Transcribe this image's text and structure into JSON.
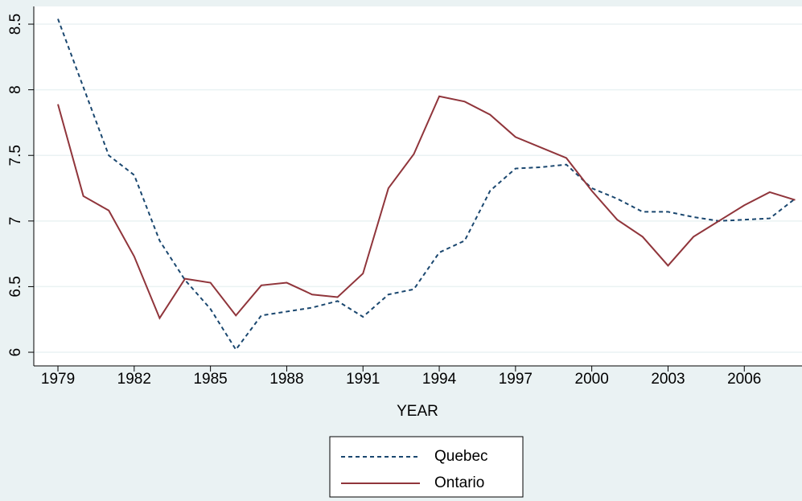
{
  "chart_data": {
    "type": "line",
    "xlabel": "YEAR",
    "x": [
      1979,
      1980,
      1981,
      1982,
      1983,
      1984,
      1985,
      1986,
      1987,
      1988,
      1989,
      1990,
      1991,
      1992,
      1993,
      1994,
      1995,
      1996,
      1997,
      1998,
      1999,
      2000,
      2001,
      2002,
      2003,
      2004,
      2005,
      2006,
      2007,
      2008
    ],
    "series": [
      {
        "name": "Quebec",
        "color": "#1a476f",
        "dash": true,
        "values": [
          8.54,
          8.02,
          7.5,
          7.35,
          6.85,
          6.55,
          6.33,
          6.02,
          6.28,
          6.31,
          6.34,
          6.39,
          6.27,
          6.44,
          6.48,
          6.76,
          6.85,
          7.23,
          7.4,
          7.41,
          7.43,
          7.25,
          7.17,
          7.07,
          7.07,
          7.03,
          7.0,
          7.01,
          7.02,
          7.17
        ]
      },
      {
        "name": "Ontario",
        "color": "#90353b",
        "dash": false,
        "values": [
          7.89,
          7.19,
          7.08,
          6.73,
          6.26,
          6.56,
          6.53,
          6.28,
          6.51,
          6.53,
          6.44,
          6.42,
          6.6,
          7.25,
          7.51,
          7.95,
          7.91,
          7.81,
          7.64,
          7.56,
          7.48,
          7.23,
          7.01,
          6.88,
          6.66,
          6.88,
          7.0,
          7.12,
          7.22,
          7.16
        ]
      }
    ],
    "xlim": [
      1978.05,
      2008.27
    ],
    "xticks": [
      1979,
      1982,
      1985,
      1988,
      1991,
      1994,
      1997,
      2000,
      2003,
      2006
    ],
    "ylim": [
      5.896,
      8.635
    ],
    "yticks": [
      6,
      6.5,
      7,
      7.5,
      8,
      8.5
    ],
    "grid": true,
    "legend": "bottom"
  }
}
